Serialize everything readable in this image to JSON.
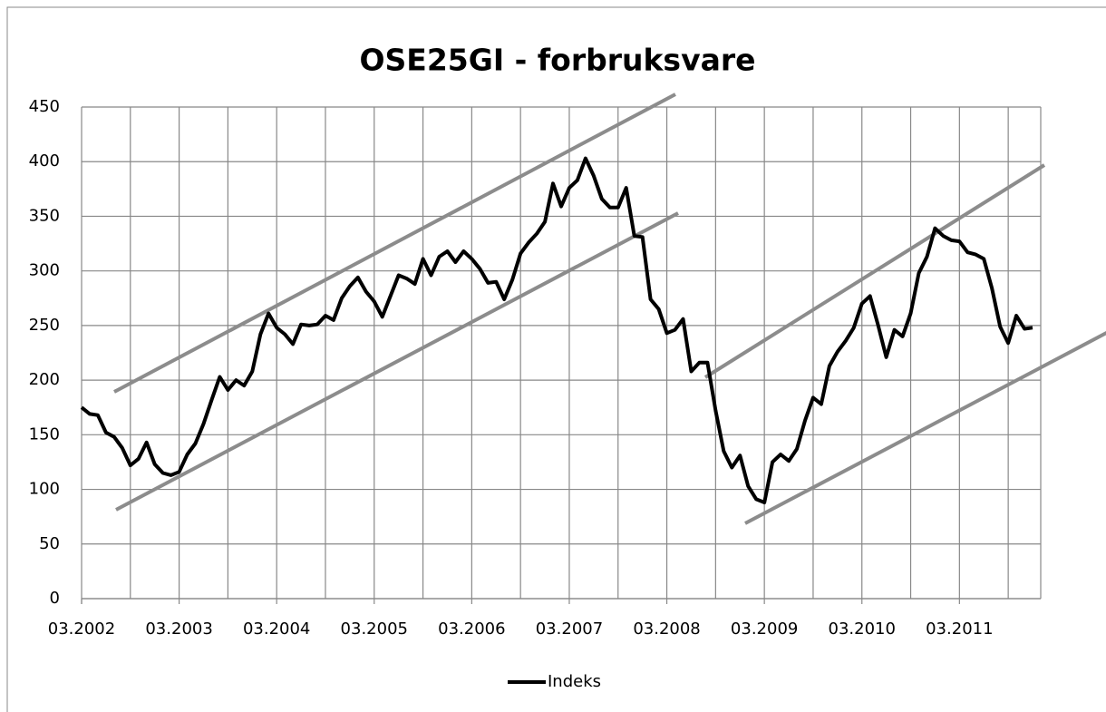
{
  "chart_data": {
    "type": "line",
    "title": "OSE25GI - forbruksvare",
    "categories": [
      "03.2002",
      null,
      null,
      null,
      null,
      null,
      null,
      null,
      null,
      null,
      null,
      null,
      "03.2003",
      null,
      null,
      null,
      null,
      null,
      null,
      null,
      null,
      null,
      null,
      null,
      "03.2004",
      null,
      null,
      null,
      null,
      null,
      null,
      null,
      null,
      null,
      null,
      null,
      "03.2005",
      null,
      null,
      null,
      null,
      null,
      null,
      null,
      null,
      null,
      null,
      null,
      "03.2006",
      null,
      null,
      null,
      null,
      null,
      null,
      null,
      null,
      null,
      null,
      null,
      "03.2007",
      null,
      null,
      null,
      null,
      null,
      null,
      null,
      null,
      null,
      null,
      null,
      "03.2008",
      null,
      null,
      null,
      null,
      null,
      null,
      null,
      null,
      null,
      null,
      null,
      "03.2009",
      null,
      null,
      null,
      null,
      null,
      null,
      null,
      null,
      null,
      null,
      null,
      "03.2010",
      null,
      null,
      null,
      null,
      null,
      null,
      null,
      null,
      null,
      null,
      null,
      "03.2011",
      null,
      null,
      null,
      null,
      null,
      null,
      null,
      null,
      null
    ],
    "series": [
      {
        "name": "Indeks",
        "color": "#000000",
        "values": [
          175,
          169,
          168,
          152,
          148,
          138,
          122,
          128,
          143,
          123,
          115,
          113,
          116,
          132,
          142,
          160,
          182,
          203,
          191,
          200,
          195,
          208,
          242,
          261,
          248,
          242,
          233,
          251,
          250,
          251,
          259,
          255,
          275,
          286,
          294,
          281,
          272,
          258,
          277,
          296,
          293,
          288,
          311,
          296,
          313,
          318,
          308,
          318,
          311,
          302,
          289,
          290,
          274,
          292,
          316,
          326,
          334,
          345,
          380,
          359,
          376,
          383,
          403,
          387,
          366,
          358,
          358,
          376,
          332,
          331,
          274,
          265,
          243,
          246,
          256,
          208,
          216,
          216,
          172,
          135,
          120,
          131,
          103,
          91,
          88,
          125,
          132,
          126,
          137,
          163,
          184,
          178,
          213,
          226,
          236,
          248,
          270,
          277,
          250,
          221,
          246,
          240,
          261,
          298,
          313,
          339,
          332,
          328,
          327,
          317,
          315,
          311,
          284,
          249,
          234,
          259,
          247,
          248
        ]
      }
    ],
    "ylim": [
      0,
      450
    ],
    "yticks": [
      0,
      50,
      100,
      150,
      200,
      250,
      300,
      350,
      400,
      450
    ],
    "grid": true,
    "legend": "bottom"
  }
}
